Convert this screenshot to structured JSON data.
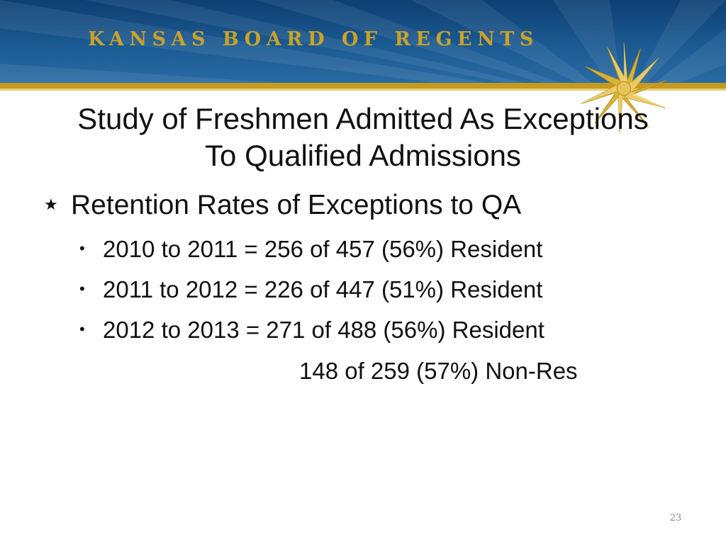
{
  "header": {
    "org_name": "KANSAS BOARD OF REGENTS",
    "colors": {
      "banner": "#1b5a92",
      "gold": "#c69a1e"
    },
    "logo_icon": "gold-star-icon"
  },
  "slide": {
    "title_line1": "Study of Freshmen Admitted As Exceptions",
    "title_line2": "To Qualified Admissions",
    "bullet_marker": "★",
    "bullet": "Retention Rates of Exceptions to QA",
    "sub_marker": "•",
    "sub_items": [
      "2010 to 2011 = 256 of 457 (56%) Resident",
      "2011 to 2012 = 226 of 447 (51%) Resident",
      "2012 to 2013 = 271 of 488 (56%) Resident"
    ],
    "continuation": "148 of 259 (57%) Non-Res"
  },
  "page_number": "23"
}
